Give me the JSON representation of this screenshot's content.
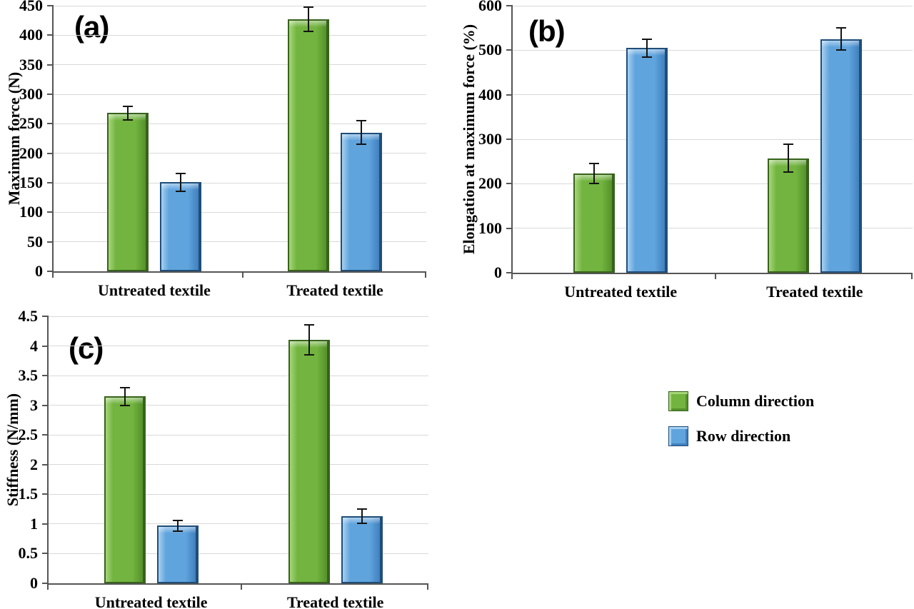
{
  "figure": {
    "background": "#ffffff"
  },
  "colors": {
    "green": "#72b43f",
    "green_light": "#a6d67a",
    "green_dark": "#55922a",
    "green_border": "#37631c",
    "blue": "#60a4dd",
    "blue_light": "#a7d0f1",
    "blue_dark": "#4080bf",
    "blue_border": "#1f4e79",
    "grid": "#d9d9d9",
    "axis": "#555555",
    "error_bar": "#141414",
    "text": "#000000"
  },
  "legend": {
    "position": "outside-right-middle",
    "items": [
      {
        "label": "Column direction",
        "series_key": "column"
      },
      {
        "label": "Row direction",
        "series_key": "row"
      }
    ]
  },
  "chart_data": [
    {
      "id": "a",
      "type": "bar",
      "panel_label": "(a)",
      "title": "",
      "xlabel": "",
      "ylabel": "Maximum force (N)",
      "ylim": [
        0,
        450
      ],
      "ytick_step": 50,
      "grid": true,
      "categories": [
        "Untreated textile",
        "Treated textile"
      ],
      "series": [
        {
          "name": "Column direction",
          "key": "column",
          "values": [
            268,
            427
          ],
          "errors": [
            11,
            20
          ]
        },
        {
          "name": "Row direction",
          "key": "row",
          "values": [
            151,
            235
          ],
          "errors": [
            15,
            20
          ]
        }
      ]
    },
    {
      "id": "b",
      "type": "bar",
      "panel_label": "(b)",
      "title": "",
      "xlabel": "",
      "ylabel": "Elongation at maximum force (%)",
      "ylim": [
        0,
        600
      ],
      "ytick_step": 100,
      "grid": true,
      "categories": [
        "Untreated textile",
        "Treated textile"
      ],
      "series": [
        {
          "name": "Column direction",
          "key": "column",
          "values": [
            223,
            257
          ],
          "errors": [
            23,
            31
          ]
        },
        {
          "name": "Row direction",
          "key": "row",
          "values": [
            505,
            525
          ],
          "errors": [
            20,
            25
          ]
        }
      ]
    },
    {
      "id": "c",
      "type": "bar",
      "panel_label": "(c)",
      "title": "",
      "xlabel": "",
      "ylabel": "Stiffness (N/mm)",
      "ylim": [
        0,
        4.5
      ],
      "ytick_step": 0.5,
      "grid": true,
      "categories": [
        "Untreated textile",
        "Treated textile"
      ],
      "series": [
        {
          "name": "Column direction",
          "key": "column",
          "values": [
            3.15,
            4.1
          ],
          "errors": [
            0.15,
            0.25
          ]
        },
        {
          "name": "Row direction",
          "key": "row",
          "values": [
            0.97,
            1.13
          ],
          "errors": [
            0.09,
            0.12
          ]
        }
      ]
    }
  ]
}
